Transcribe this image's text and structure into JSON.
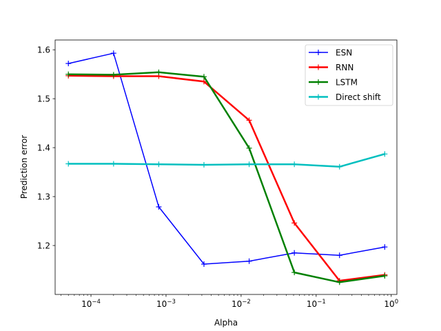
{
  "chart_data": {
    "type": "line",
    "xscale": "log",
    "xlabel": "Alpha",
    "ylabel": "Prediction error",
    "xlim": [
      3.33e-05,
      1.19
    ],
    "ylim": [
      1.1,
      1.62
    ],
    "x": [
      5e-05,
      0.0002,
      0.0008,
      0.0032,
      0.0128,
      0.0512,
      0.2048,
      0.8192
    ],
    "xticks": [
      {
        "value": 0.0001,
        "base": "10",
        "exp": "−4"
      },
      {
        "value": 0.001,
        "base": "10",
        "exp": "−3"
      },
      {
        "value": 0.01,
        "base": "10",
        "exp": "−2"
      },
      {
        "value": 0.1,
        "base": "10",
        "exp": "−1"
      },
      {
        "value": 1,
        "base": "10",
        "exp": "0"
      }
    ],
    "yticks": [
      {
        "value": 1.2,
        "label": "1.2"
      },
      {
        "value": 1.3,
        "label": "1.3"
      },
      {
        "value": 1.4,
        "label": "1.4"
      },
      {
        "value": 1.5,
        "label": "1.5"
      },
      {
        "value": 1.6,
        "label": "1.6"
      }
    ],
    "legend_position": "top-right",
    "grid": false,
    "series": [
      {
        "name": "ESN",
        "color": "#0000ff",
        "linewidth": 1.5,
        "values": [
          1.572,
          1.593,
          1.279,
          1.162,
          1.168,
          1.185,
          1.18,
          1.197
        ]
      },
      {
        "name": "RNN",
        "color": "#ff0000",
        "linewidth": 2.5,
        "values": [
          1.547,
          1.546,
          1.546,
          1.535,
          1.456,
          1.246,
          1.128,
          1.14
        ]
      },
      {
        "name": "LSTM",
        "color": "#008000",
        "linewidth": 2.5,
        "values": [
          1.55,
          1.549,
          1.554,
          1.545,
          1.399,
          1.145,
          1.125,
          1.138
        ]
      },
      {
        "name": "Direct shift",
        "color": "#00bfbf",
        "linewidth": 2.5,
        "values": [
          1.367,
          1.367,
          1.366,
          1.365,
          1.366,
          1.366,
          1.361,
          1.387
        ]
      }
    ]
  }
}
